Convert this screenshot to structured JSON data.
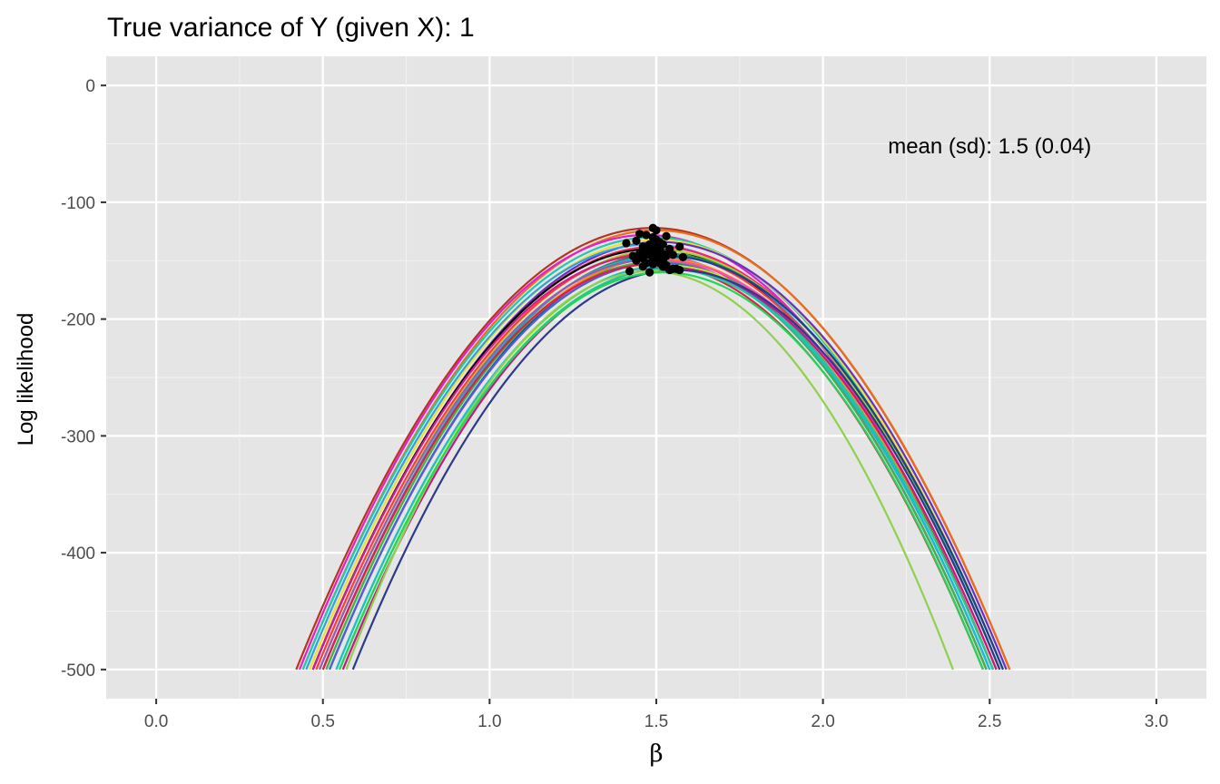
{
  "chart_data": {
    "type": "line",
    "title": "True variance of Y (given X): 1",
    "xlabel": "β",
    "ylabel": "Log likelihood",
    "xlim": [
      -0.15,
      3.15
    ],
    "ylim": [
      -525,
      25
    ],
    "x_ticks": [
      0.0,
      0.5,
      1.0,
      1.5,
      2.0,
      2.5,
      3.0
    ],
    "x_tick_labels": [
      "0.0",
      "0.5",
      "1.0",
      "1.5",
      "2.0",
      "2.5",
      "3.0"
    ],
    "y_ticks": [
      0,
      -100,
      -200,
      -300,
      -400,
      -500
    ],
    "y_tick_labels": [
      "0",
      "-100",
      "-200",
      "-300",
      "-400",
      "-500"
    ],
    "grid": true,
    "reference_line_x": 1.5,
    "annotation": {
      "text": "mean (sd): 1.5 (0.04)",
      "x": 2.5,
      "y": -52
    },
    "series_description": "parabolic log-likelihood curves (one per simulation), each truncated at -500",
    "series": [
      {
        "color": "#b5341c",
        "peak_x": 1.49,
        "peak_y": -122,
        "x_range": [
          0.42,
          2.56
        ]
      },
      {
        "color": "#e76f1f",
        "peak_x": 1.5,
        "peak_y": -124,
        "x_range": [
          0.44,
          2.56
        ]
      },
      {
        "color": "#e11fd0",
        "peak_x": 1.47,
        "peak_y": -128,
        "x_range": [
          0.43,
          2.51
        ]
      },
      {
        "color": "#1fc9b0",
        "peak_x": 1.49,
        "peak_y": -130,
        "x_range": [
          0.44,
          2.53
        ]
      },
      {
        "color": "#f0e130",
        "peak_x": 1.5,
        "peak_y": -132,
        "x_range": [
          0.46,
          2.54
        ]
      },
      {
        "color": "#6a2fc1",
        "peak_x": 1.51,
        "peak_y": -134,
        "x_range": [
          0.47,
          2.55
        ]
      },
      {
        "color": "#2ca3e0",
        "peak_x": 1.48,
        "peak_y": -136,
        "x_range": [
          0.45,
          2.51
        ]
      },
      {
        "color": "#ff1f6b",
        "peak_x": 1.5,
        "peak_y": -138,
        "x_range": [
          0.47,
          2.53
        ]
      },
      {
        "color": "#000000",
        "peak_x": 1.49,
        "peak_y": -140,
        "x_range": [
          0.47,
          2.51
        ]
      },
      {
        "color": "#a6d52c",
        "peak_x": 1.51,
        "peak_y": -141,
        "x_range": [
          0.49,
          2.53
        ]
      },
      {
        "color": "#ff3b3b",
        "peak_x": 1.5,
        "peak_y": -143,
        "x_range": [
          0.48,
          2.52
        ]
      },
      {
        "color": "#2e8b57",
        "peak_x": 1.52,
        "peak_y": -144,
        "x_range": [
          0.5,
          2.54
        ]
      },
      {
        "color": "#d21f8a",
        "peak_x": 1.48,
        "peak_y": -145,
        "x_range": [
          0.47,
          2.49
        ]
      },
      {
        "color": "#1c3f94",
        "peak_x": 1.53,
        "peak_y": -146,
        "x_range": [
          0.52,
          2.54
        ]
      },
      {
        "color": "#19b3c8",
        "peak_x": 1.5,
        "peak_y": -147,
        "x_range": [
          0.5,
          2.5
        ]
      },
      {
        "color": "#ff8c1a",
        "peak_x": 1.51,
        "peak_y": -148,
        "x_range": [
          0.51,
          2.51
        ]
      },
      {
        "color": "#9b59b6",
        "peak_x": 1.49,
        "peak_y": -149,
        "x_range": [
          0.49,
          2.49
        ]
      },
      {
        "color": "#ff4fa3",
        "peak_x": 1.52,
        "peak_y": -150,
        "x_range": [
          0.52,
          2.52
        ]
      },
      {
        "color": "#3cb44b",
        "peak_x": 1.5,
        "peak_y": -151,
        "x_range": [
          0.51,
          2.49
        ]
      },
      {
        "color": "#4363d8",
        "peak_x": 1.51,
        "peak_y": -152,
        "x_range": [
          0.52,
          2.5
        ]
      },
      {
        "color": "#e6194b",
        "peak_x": 1.49,
        "peak_y": -153,
        "x_range": [
          0.5,
          2.48
        ]
      },
      {
        "color": "#bcf60c",
        "peak_x": 1.53,
        "peak_y": -154,
        "x_range": [
          0.54,
          2.52
        ]
      },
      {
        "color": "#17becf",
        "peak_x": 1.52,
        "peak_y": -155,
        "x_range": [
          0.54,
          2.5
        ]
      },
      {
        "color": "#c71585",
        "peak_x": 1.54,
        "peak_y": -156,
        "x_range": [
          0.56,
          2.52
        ]
      },
      {
        "color": "#20c997",
        "peak_x": 1.53,
        "peak_y": -157,
        "x_range": [
          0.55,
          2.51
        ]
      },
      {
        "color": "#2b3a8c",
        "peak_x": 1.56,
        "peak_y": -158,
        "x_range": [
          0.59,
          2.53
        ]
      },
      {
        "color": "#8fd14f",
        "peak_x": 1.48,
        "peak_y": -159,
        "x_range": [
          0.57,
          2.39
        ]
      },
      {
        "color": "#1fd655",
        "peak_x": 1.52,
        "peak_y": -160,
        "x_range": [
          0.55,
          2.48
        ]
      }
    ],
    "points": [
      {
        "x": 1.49,
        "y": -122
      },
      {
        "x": 1.5,
        "y": -124
      },
      {
        "x": 1.45,
        "y": -127
      },
      {
        "x": 1.47,
        "y": -128
      },
      {
        "x": 1.53,
        "y": -129
      },
      {
        "x": 1.49,
        "y": -130
      },
      {
        "x": 1.5,
        "y": -132
      },
      {
        "x": 1.44,
        "y": -133
      },
      {
        "x": 1.51,
        "y": -134
      },
      {
        "x": 1.41,
        "y": -135
      },
      {
        "x": 1.48,
        "y": -136
      },
      {
        "x": 1.52,
        "y": -136
      },
      {
        "x": 1.5,
        "y": -138
      },
      {
        "x": 1.46,
        "y": -138
      },
      {
        "x": 1.57,
        "y": -138
      },
      {
        "x": 1.49,
        "y": -140
      },
      {
        "x": 1.54,
        "y": -140
      },
      {
        "x": 1.51,
        "y": -141
      },
      {
        "x": 1.47,
        "y": -142
      },
      {
        "x": 1.5,
        "y": -143
      },
      {
        "x": 1.52,
        "y": -144
      },
      {
        "x": 1.45,
        "y": -144
      },
      {
        "x": 1.48,
        "y": -145
      },
      {
        "x": 1.55,
        "y": -145
      },
      {
        "x": 1.53,
        "y": -146
      },
      {
        "x": 1.43,
        "y": -146
      },
      {
        "x": 1.5,
        "y": -147
      },
      {
        "x": 1.58,
        "y": -147
      },
      {
        "x": 1.51,
        "y": -148
      },
      {
        "x": 1.46,
        "y": -148
      },
      {
        "x": 1.49,
        "y": -149
      },
      {
        "x": 1.52,
        "y": -150
      },
      {
        "x": 1.44,
        "y": -150
      },
      {
        "x": 1.5,
        "y": -151
      },
      {
        "x": 1.47,
        "y": -152
      },
      {
        "x": 1.51,
        "y": -152
      },
      {
        "x": 1.49,
        "y": -153
      },
      {
        "x": 1.53,
        "y": -154
      },
      {
        "x": 1.46,
        "y": -155
      },
      {
        "x": 1.52,
        "y": -155
      },
      {
        "x": 1.55,
        "y": -157
      },
      {
        "x": 1.54,
        "y": -158
      },
      {
        "x": 1.57,
        "y": -158
      },
      {
        "x": 1.56,
        "y": -157
      },
      {
        "x": 1.42,
        "y": -159
      },
      {
        "x": 1.48,
        "y": -160
      }
    ]
  }
}
